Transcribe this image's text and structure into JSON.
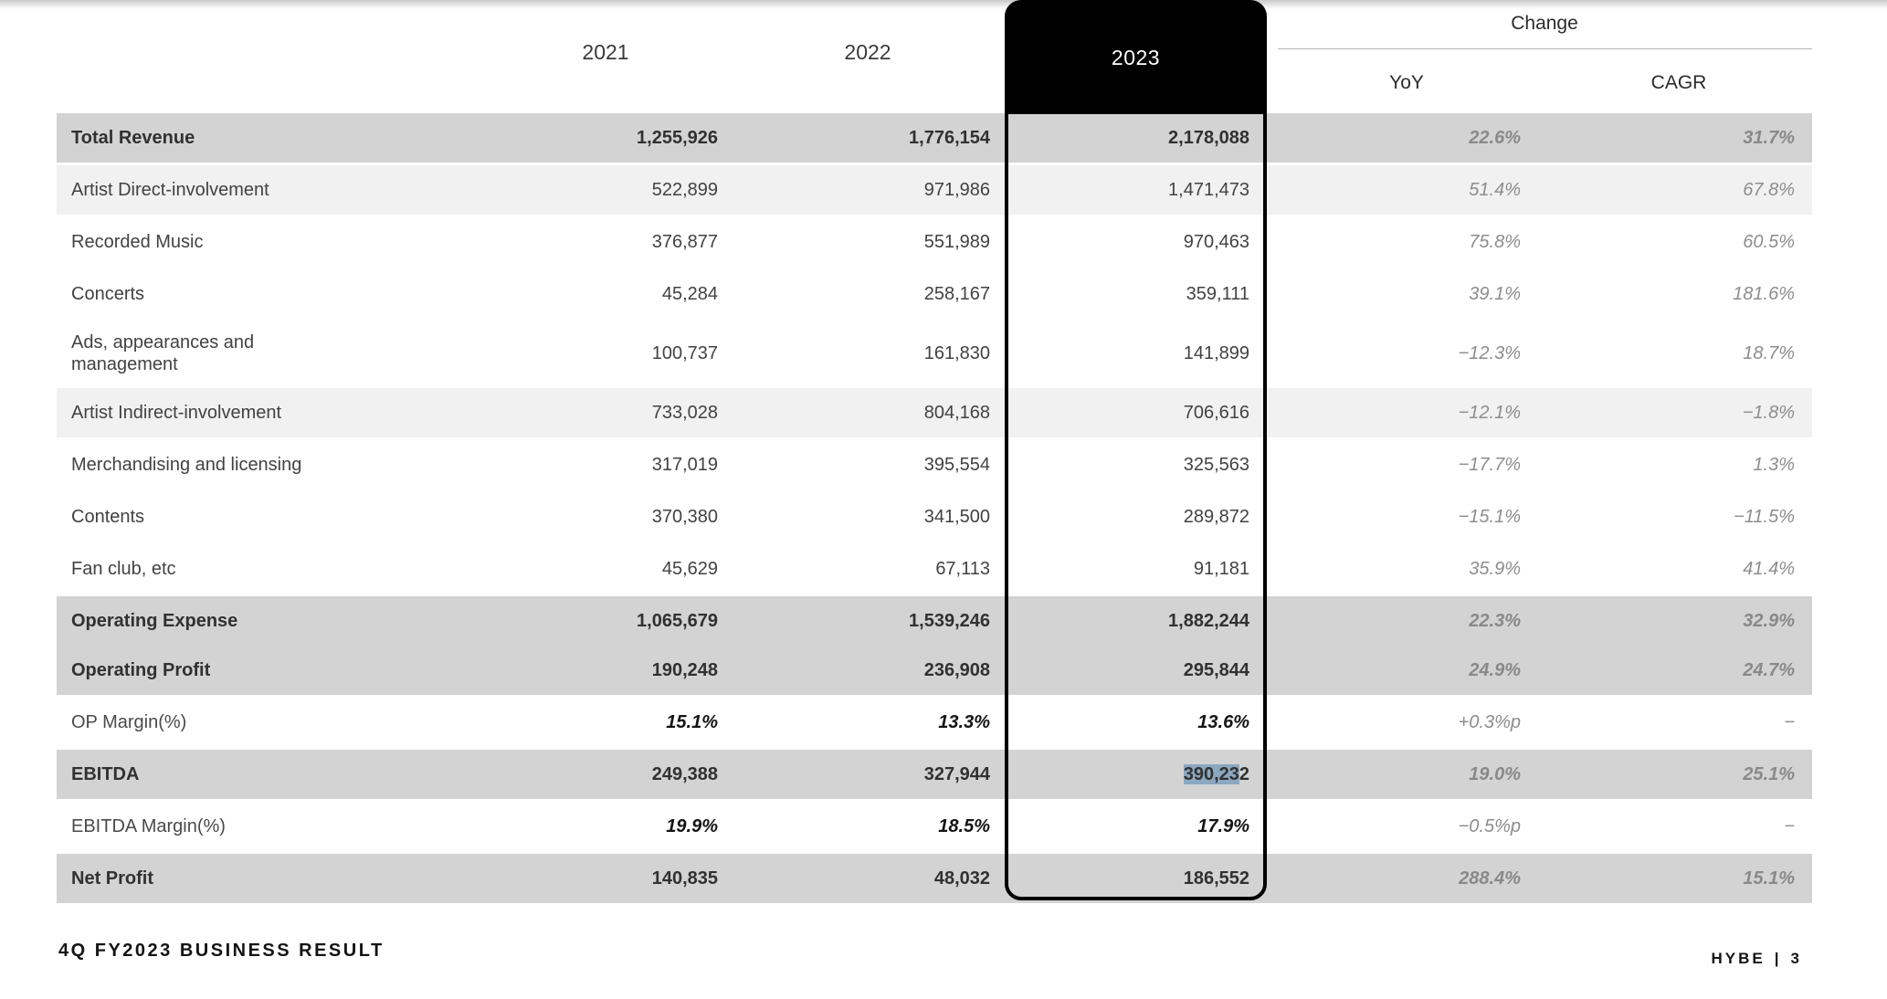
{
  "colors": {
    "row_gray": "#d3d3d3",
    "row_light_gray": "#f1f1f1",
    "column_box_black": "#000000",
    "selection_highlight": "#8ca7c0",
    "change_text_gray": "#8d8d8d"
  },
  "header": {
    "col_2021": "2021",
    "col_2022": "2022",
    "col_2023": "2023",
    "change_group": "Change",
    "col_yoy": "YoY",
    "col_cagr": "CAGR"
  },
  "table": {
    "rows": [
      {
        "label": "Total Revenue",
        "v2021": "1,255,926",
        "v2022": "1,776,154",
        "v2023": "2,178,088",
        "yoy": "22.6%",
        "cagr": "31.7%",
        "style": "major"
      },
      {
        "label": "Artist Direct-involvement",
        "v2021": "522,899",
        "v2022": "971,986",
        "v2023": "1,471,473",
        "yoy": "51.4%",
        "cagr": "67.8%",
        "style": "subgray"
      },
      {
        "label": "Recorded Music",
        "v2021": "376,877",
        "v2022": "551,989",
        "v2023": "970,463",
        "yoy": "75.8%",
        "cagr": "60.5%",
        "style": "sub"
      },
      {
        "label": "Concerts",
        "v2021": "45,284",
        "v2022": "258,167",
        "v2023": "359,111",
        "yoy": "39.1%",
        "cagr": "181.6%",
        "style": "sub"
      },
      {
        "label": "Ads, appearances and\nmanagement",
        "v2021": "100,737",
        "v2022": "161,830",
        "v2023": "141,899",
        "yoy": "−12.3%",
        "cagr": "18.7%",
        "style": "sub",
        "tall": true
      },
      {
        "label": "Artist Indirect-involvement",
        "v2021": "733,028",
        "v2022": "804,168",
        "v2023": "706,616",
        "yoy": "−12.1%",
        "cagr": "−1.8%",
        "style": "subgray"
      },
      {
        "label": "Merchandising and licensing",
        "v2021": "317,019",
        "v2022": "395,554",
        "v2023": "325,563",
        "yoy": "−17.7%",
        "cagr": "1.3%",
        "style": "sub"
      },
      {
        "label": "Contents",
        "v2021": "370,380",
        "v2022": "341,500",
        "v2023": "289,872",
        "yoy": "−15.1%",
        "cagr": "−11.5%",
        "style": "sub"
      },
      {
        "label": "Fan club, etc",
        "v2021": "45,629",
        "v2022": "67,113",
        "v2023": "91,181",
        "yoy": "35.9%",
        "cagr": "41.4%",
        "style": "sub"
      },
      {
        "label": "Operating Expense",
        "v2021": "1,065,679",
        "v2022": "1,539,246",
        "v2023": "1,882,244",
        "yoy": "22.3%",
        "cagr": "32.9%",
        "style": "major",
        "joined": true
      },
      {
        "label": "Operating Profit",
        "v2021": "190,248",
        "v2022": "236,908",
        "v2023": "295,844",
        "yoy": "24.9%",
        "cagr": "24.7%",
        "style": "major"
      },
      {
        "label": "OP Margin(%)",
        "v2021": "15.1%",
        "v2022": "13.3%",
        "v2023": "13.6%",
        "yoy": "+0.3%p",
        "cagr": "−",
        "style": "margin"
      },
      {
        "label": "EBITDA",
        "v2021": "249,388",
        "v2022": "327,944",
        "v2023": "390,232",
        "v2023_selection": {
          "highlighted": "390,23",
          "rest": "2"
        },
        "yoy": "19.0%",
        "cagr": "25.1%",
        "style": "major"
      },
      {
        "label": "EBITDA Margin(%)",
        "v2021": "19.9%",
        "v2022": "18.5%",
        "v2023": "17.9%",
        "yoy": "−0.5%p",
        "cagr": "−",
        "style": "margin"
      },
      {
        "label": "Net Profit",
        "v2021": "140,835",
        "v2022": "48,032",
        "v2023": "186,552",
        "yoy": "288.4%",
        "cagr": "15.1%",
        "style": "major"
      }
    ]
  },
  "footer": {
    "left_title": "4Q FY2023 BUSINESS RESULT",
    "brand": "HYBE",
    "separator": "|",
    "page_number": "3"
  }
}
